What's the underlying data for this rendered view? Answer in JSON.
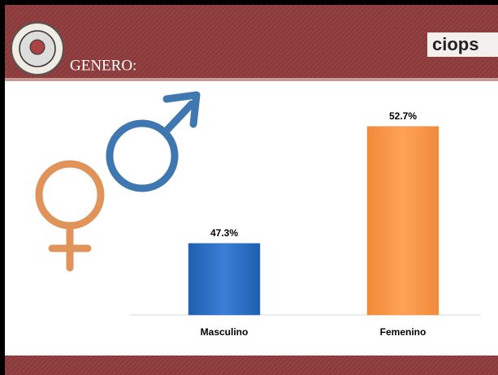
{
  "header": {
    "title": "GENERO:",
    "logo_text": "ciops"
  },
  "chart_data": {
    "type": "bar",
    "categories": [
      "Masculino",
      "Femenino"
    ],
    "values": [
      47.3,
      52.7
    ],
    "value_labels": [
      "47.3%",
      "52.7%"
    ],
    "colors": [
      "#2f72c8",
      "#f79646"
    ],
    "ylim": [
      44,
      54
    ]
  }
}
